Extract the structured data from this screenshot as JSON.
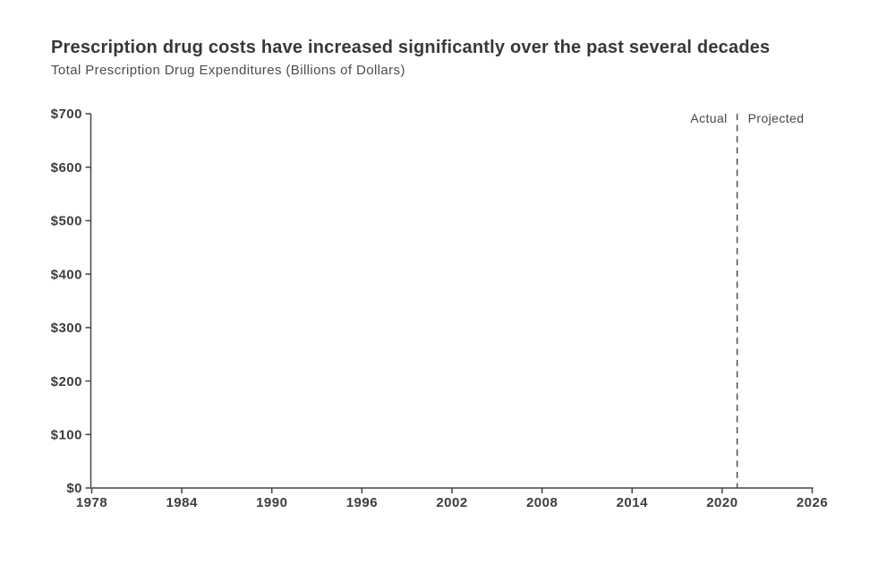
{
  "header": {
    "title": "Prescription drug costs have increased significantly over the past several decades",
    "subtitle": "Total Prescription Drug Expenditures (Billions of Dollars)"
  },
  "annotation_labels": {
    "actual": "Actual",
    "projected": "Projected"
  },
  "colors": {
    "background": "#ffffff",
    "title": "#383838",
    "subtitle": "#4d4d4d",
    "x_axis_line": "#717171",
    "y_axis_line": "#454545",
    "tick_mark": "#454545",
    "tick_label": "#3d3d3d",
    "divider_line": "#4f4f4f",
    "divider_label": "#464646"
  },
  "chart_data": {
    "type": "line",
    "title": "Prescription drug costs have increased significantly over the past several decades",
    "subtitle": "Total Prescription Drug Expenditures (Billions of Dollars)",
    "xlabel": "",
    "ylabel": "Total Prescription Drug Expenditures (Billions of Dollars)",
    "xlim": [
      1978,
      2026
    ],
    "ylim": [
      0,
      700
    ],
    "x_ticks": [
      1978,
      1984,
      1990,
      1996,
      2002,
      2008,
      2014,
      2020,
      2026
    ],
    "x_tick_labels": [
      "1978",
      "1984",
      "1990",
      "1996",
      "2002",
      "2008",
      "2014",
      "2020",
      "2026"
    ],
    "y_ticks": [
      0,
      100,
      200,
      300,
      400,
      500,
      600,
      700
    ],
    "y_tick_labels": [
      "$0",
      "$100",
      "$200",
      "$300",
      "$400",
      "$500",
      "$600",
      "$700"
    ],
    "grid": false,
    "legend_position": "none",
    "series": [],
    "annotations": [
      {
        "type": "vline",
        "x": 2021,
        "line_style": "dashed",
        "left_label": "Actual",
        "right_label": "Projected"
      }
    ]
  }
}
